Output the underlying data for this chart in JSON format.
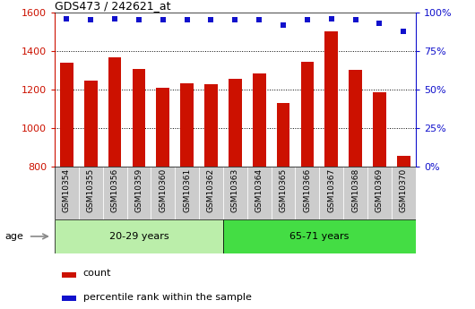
{
  "title": "GDS473 / 242621_at",
  "samples": [
    "GSM10354",
    "GSM10355",
    "GSM10356",
    "GSM10359",
    "GSM10360",
    "GSM10361",
    "GSM10362",
    "GSM10363",
    "GSM10364",
    "GSM10365",
    "GSM10366",
    "GSM10367",
    "GSM10368",
    "GSM10369",
    "GSM10370"
  ],
  "counts": [
    1340,
    1245,
    1365,
    1305,
    1210,
    1235,
    1230,
    1255,
    1285,
    1130,
    1345,
    1500,
    1300,
    1185,
    855
  ],
  "percentile_ranks": [
    96,
    95,
    96,
    95,
    95,
    95,
    95,
    95,
    95,
    92,
    95,
    96,
    95,
    93,
    88
  ],
  "group1_label": "20-29 years",
  "group2_label": "65-71 years",
  "group1_count": 7,
  "group2_count": 8,
  "ylim_left": [
    800,
    1600
  ],
  "ylim_right": [
    0,
    100
  ],
  "yticks_left": [
    800,
    1000,
    1200,
    1400,
    1600
  ],
  "yticks_right": [
    0,
    25,
    50,
    75,
    100
  ],
  "bar_color": "#cc1100",
  "dot_color": "#1111cc",
  "group1_bg": "#bbeeaa",
  "group2_bg": "#44dd44",
  "tick_bg": "#cccccc",
  "age_label": "age",
  "legend_count_label": "count",
  "legend_pct_label": "percentile rank within the sample",
  "fig_width": 5.3,
  "fig_height": 3.45,
  "dpi": 100
}
